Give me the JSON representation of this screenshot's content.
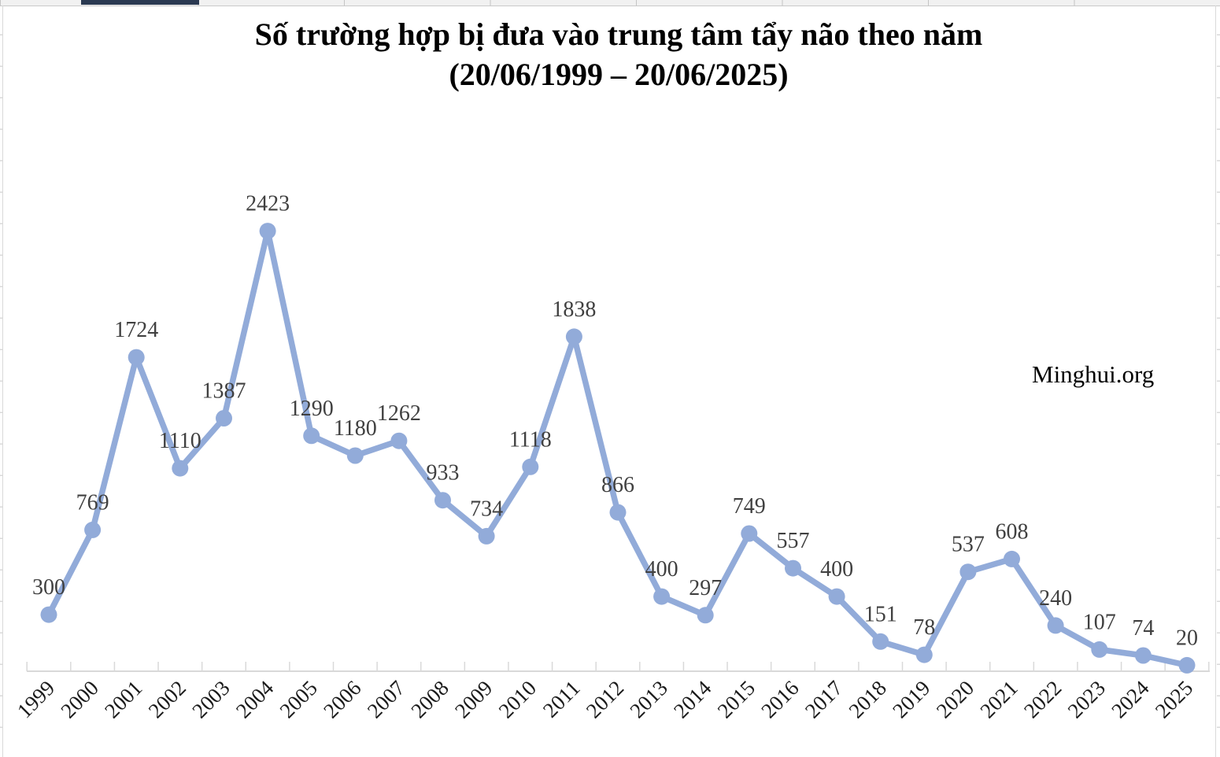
{
  "title": {
    "line1": "Số trường hợp bị đưa vào trung tâm tẩy não theo năm",
    "line2": "(20/06/1999 – 20/06/2025)"
  },
  "watermark": {
    "text": "Minghui.org"
  },
  "chart_data": {
    "type": "line",
    "title": "Số trường hợp bị đưa vào trung tâm tẩy não theo năm",
    "subtitle": "(20/06/1999 – 20/06/2025)",
    "categories": [
      "1999",
      "2000",
      "2001",
      "2002",
      "2003",
      "2004",
      "2005",
      "2006",
      "2007",
      "2008",
      "2009",
      "2010",
      "2011",
      "2012",
      "2013",
      "2014",
      "2015",
      "2016",
      "2017",
      "2018",
      "2019",
      "2020",
      "2021",
      "2022",
      "2023",
      "2024",
      "2025"
    ],
    "values": [
      300,
      769,
      1724,
      1110,
      1387,
      2423,
      1290,
      1180,
      1262,
      933,
      734,
      1118,
      1838,
      866,
      400,
      297,
      749,
      557,
      400,
      151,
      78,
      537,
      608,
      240,
      107,
      74,
      20
    ],
    "data_labels": true,
    "legend": "none",
    "grid": "off",
    "ylim": [
      0,
      2500
    ],
    "xlabel": "",
    "ylabel": "",
    "line_color": "#92abd9",
    "marker_color": "#92abd9",
    "marker": "circle",
    "data_label_color": "#404040",
    "axis_label_color": "#1a1a1a",
    "axis_color": "#d9d9d9",
    "annotation": "Minghui.org"
  }
}
